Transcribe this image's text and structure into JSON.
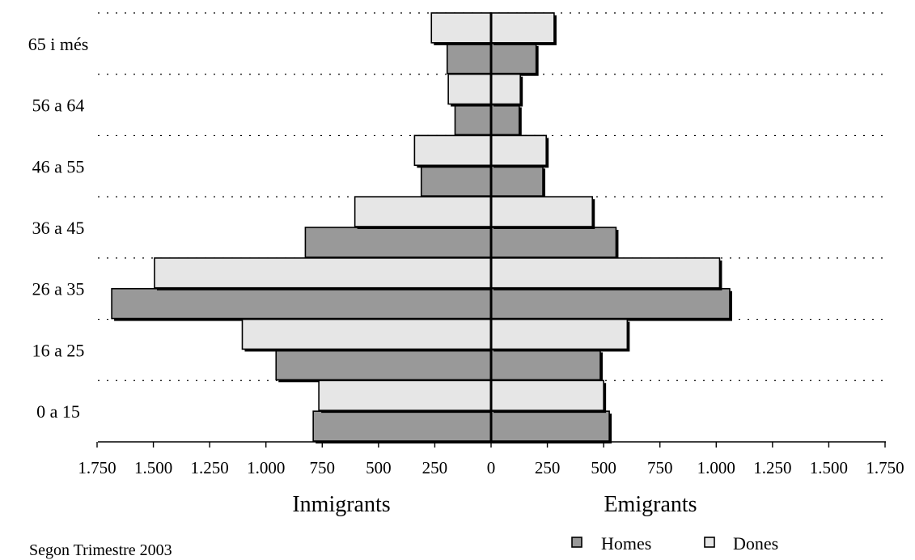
{
  "chart_data": {
    "type": "bar",
    "orientation": "horizontal",
    "layout": "population-pyramid",
    "categories": [
      "0 a 15",
      "16 a 25",
      "26 a 35",
      "36 a 45",
      "46 a 55",
      "56 a 64",
      "65 i més"
    ],
    "x_ticks": [
      "1.750",
      "1.500",
      "1.250",
      "1.000",
      "750",
      "500",
      "250",
      "0",
      "250",
      "500",
      "750",
      "1.000",
      "1.250",
      "1.500",
      "1.750"
    ],
    "xlim": [
      -1750,
      1750
    ],
    "grid": "horizontal dotted lines between age groups",
    "panels": [
      {
        "label": "Inmigrants",
        "side": "left",
        "series": [
          {
            "name": "Homes",
            "values": [
              790,
              955,
              1685,
              825,
              310,
              160,
              195
            ]
          },
          {
            "name": "Dones",
            "values": [
              765,
              1105,
              1495,
              605,
              340,
              190,
              265
            ]
          }
        ]
      },
      {
        "label": "Emigrants",
        "side": "right",
        "series": [
          {
            "name": "Homes",
            "values": [
              525,
              485,
              1060,
              555,
              230,
              125,
              200
            ]
          },
          {
            "name": "Dones",
            "values": [
              500,
              605,
              1015,
              450,
              245,
              130,
              280
            ]
          }
        ]
      }
    ],
    "legend": {
      "position": "bottom-right",
      "items": [
        {
          "name": "Homes",
          "color": "#999999"
        },
        {
          "name": "Dones",
          "color": "#e6e6e6"
        }
      ]
    },
    "footnote": "Segon Trimestre 2003"
  }
}
